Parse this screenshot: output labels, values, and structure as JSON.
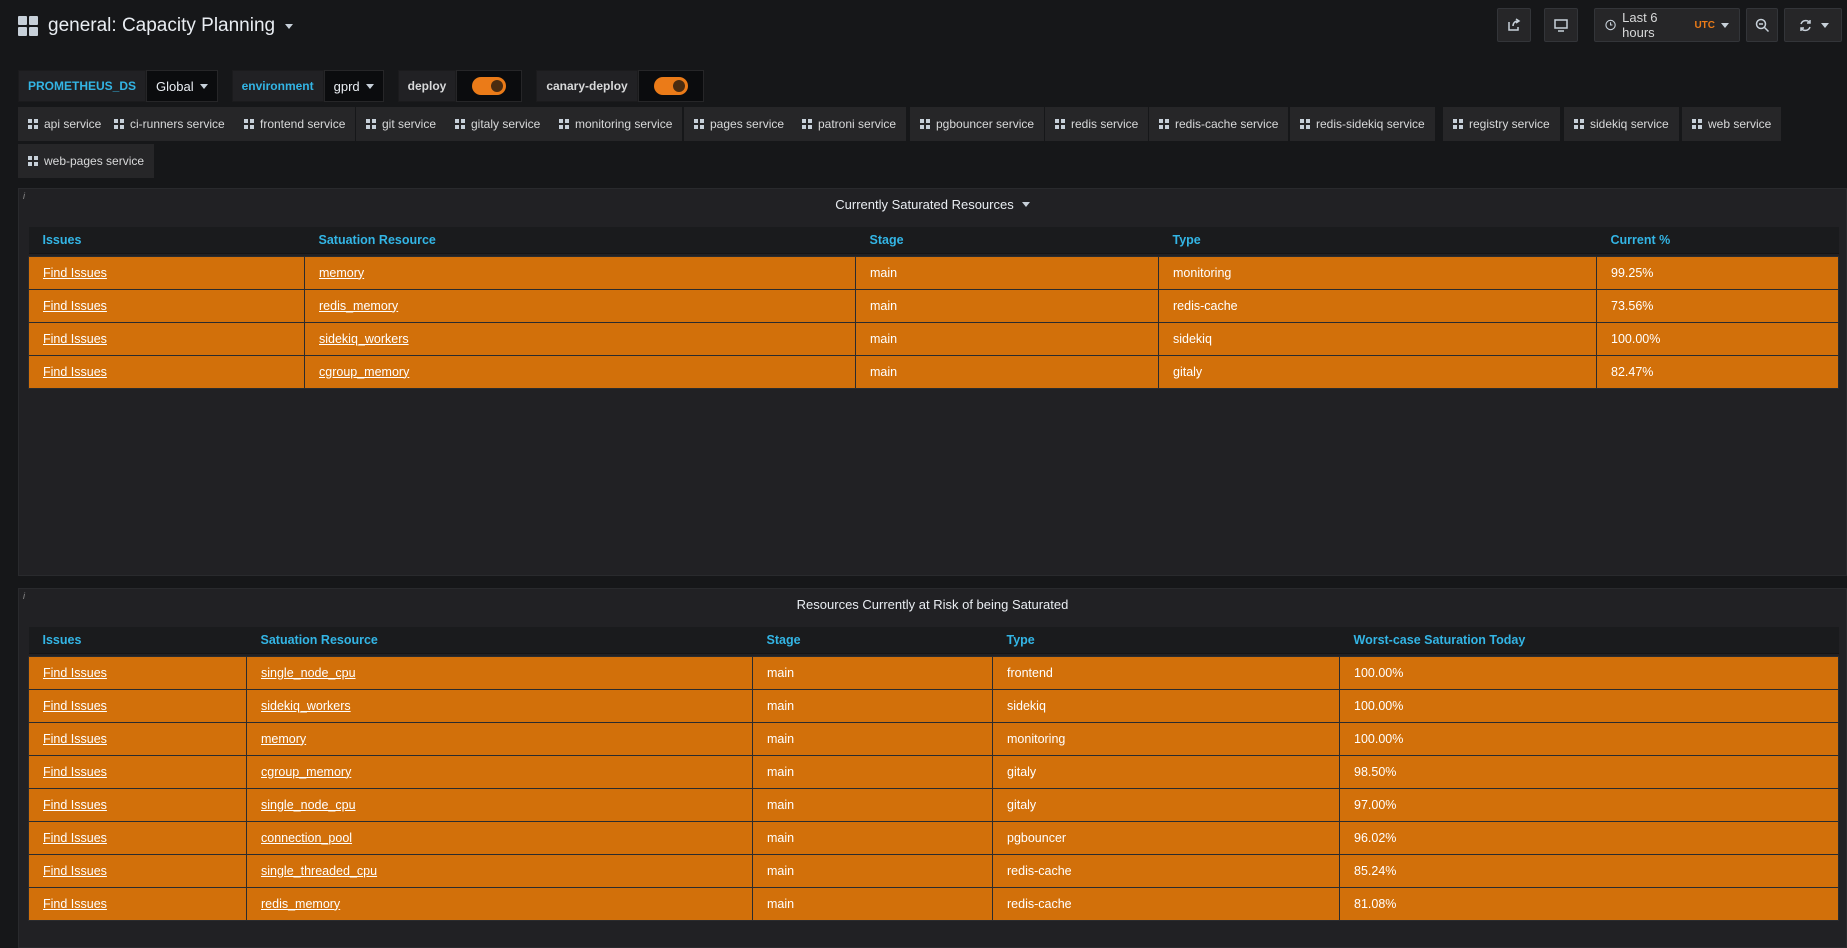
{
  "header": {
    "title": "general: Capacity Planning",
    "time_range": "Last 6 hours",
    "timezone": "UTC"
  },
  "variables": [
    {
      "label": "PROMETHEUS_DS",
      "value": "Global"
    },
    {
      "label": "environment",
      "value": "gprd"
    }
  ],
  "toggles": [
    {
      "label": "deploy",
      "on": true
    },
    {
      "label": "canary-deploy",
      "on": true
    }
  ],
  "service_links": [
    "api service",
    "ci-runners service",
    "frontend service",
    "git service",
    "gitaly service",
    "monitoring service",
    "pages service",
    "patroni service",
    "pgbouncer service",
    "redis service",
    "redis-cache service",
    "redis-sidekiq service",
    "registry service",
    "sidekiq service",
    "web service",
    "web-pages service"
  ],
  "panels": {
    "saturated": {
      "title": "Currently Saturated Resources",
      "corner": "i",
      "columns": [
        "Issues",
        "Satuation Resource",
        "Stage",
        "Type",
        "Current %"
      ],
      "rows": [
        [
          "Find Issues",
          "memory",
          "main",
          "monitoring",
          "99.25%"
        ],
        [
          "Find Issues",
          "redis_memory",
          "main",
          "redis-cache",
          "73.56%"
        ],
        [
          "Find Issues",
          "sidekiq_workers",
          "main",
          "sidekiq",
          "100.00%"
        ],
        [
          "Find Issues",
          "cgroup_memory",
          "main",
          "gitaly",
          "82.47%"
        ]
      ]
    },
    "at_risk": {
      "title": "Resources Currently at Risk of being Saturated",
      "corner": "i",
      "columns": [
        "Issues",
        "Satuation Resource",
        "Stage",
        "Type",
        "Worst-case Saturation Today"
      ],
      "rows": [
        [
          "Find Issues",
          "single_node_cpu",
          "main",
          "frontend",
          "100.00%"
        ],
        [
          "Find Issues",
          "sidekiq_workers",
          "main",
          "sidekiq",
          "100.00%"
        ],
        [
          "Find Issues",
          "memory",
          "main",
          "monitoring",
          "100.00%"
        ],
        [
          "Find Issues",
          "cgroup_memory",
          "main",
          "gitaly",
          "98.50%"
        ],
        [
          "Find Issues",
          "single_node_cpu",
          "main",
          "gitaly",
          "97.00%"
        ],
        [
          "Find Issues",
          "connection_pool",
          "main",
          "pgbouncer",
          "96.02%"
        ],
        [
          "Find Issues",
          "single_threaded_cpu",
          "main",
          "redis-cache",
          "85.24%"
        ],
        [
          "Find Issues",
          "redis_memory",
          "main",
          "redis-cache",
          "81.08%"
        ]
      ]
    }
  },
  "colors": {
    "background": "#161719",
    "panel": "#212124",
    "header_text": "#33b5e5",
    "cell_warning": "#d2700a",
    "accent": "#eb7b18"
  },
  "icons": [
    "dashboard-grid-icon",
    "share-icon",
    "tv-mode-icon",
    "clock-icon",
    "zoom-out-icon",
    "refresh-icon"
  ]
}
